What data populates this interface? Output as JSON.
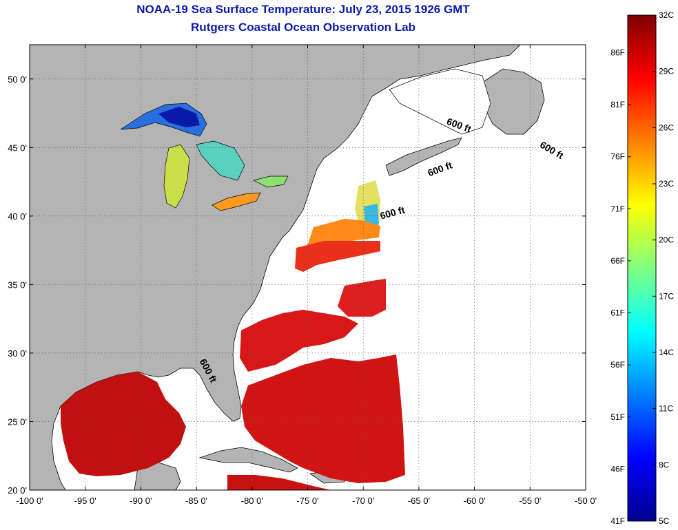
{
  "title": {
    "line1": "NOAA-19 Sea Surface Temperature:  July 23, 2015 1926 GMT",
    "line2": "Rutgers Coastal Ocean Observation Lab"
  },
  "map": {
    "projection": "equirectangular",
    "lon_range": [
      -100,
      -50
    ],
    "lat_range": [
      20,
      52.5
    ],
    "lon_ticks": [
      {
        "value": -100,
        "label": "-100 0'"
      },
      {
        "value": -95,
        "label": "-95 0'"
      },
      {
        "value": -90,
        "label": "-90 0'"
      },
      {
        "value": -85,
        "label": "-85 0'"
      },
      {
        "value": -80,
        "label": "-80 0'"
      },
      {
        "value": -75,
        "label": "-75 0'"
      },
      {
        "value": -70,
        "label": "-70 0'"
      },
      {
        "value": -65,
        "label": "-65 0'"
      },
      {
        "value": -60,
        "label": "-60 0'"
      },
      {
        "value": -55,
        "label": "-55 0'"
      },
      {
        "value": -50,
        "label": "-50 0'"
      }
    ],
    "lat_ticks": [
      {
        "value": 20,
        "label": "20 0'"
      },
      {
        "value": 25,
        "label": "25 0'"
      },
      {
        "value": 30,
        "label": "30 0'"
      },
      {
        "value": 35,
        "label": "35 0'"
      },
      {
        "value": 40,
        "label": "40 0'"
      },
      {
        "value": 45,
        "label": "45 0'"
      },
      {
        "value": 50,
        "label": "50 0'"
      }
    ],
    "grid": "dotted",
    "colors": {
      "land": "#b4b4b4",
      "no_data": "#ffffff",
      "coastline": "#000000"
    },
    "contour_labels": [
      {
        "text": "600 ft",
        "lon": -61.5,
        "lat": 46.4,
        "rotation": 20
      },
      {
        "text": "600 ft",
        "lon": -53.2,
        "lat": 44.6,
        "rotation": 30
      },
      {
        "text": "600 ft",
        "lon": -63.0,
        "lat": 43.2,
        "rotation": -20
      },
      {
        "text": "600 ft",
        "lon": -67.3,
        "lat": 40.0,
        "rotation": -15
      },
      {
        "text": "600 ft",
        "lon": -84.2,
        "lat": 28.6,
        "rotation": 62
      }
    ]
  },
  "colorbar": {
    "min_c": 5,
    "max_c": 32,
    "c_ticks": [
      {
        "value": 32,
        "label": "32C"
      },
      {
        "value": 29,
        "label": "29C"
      },
      {
        "value": 26,
        "label": "26C"
      },
      {
        "value": 23,
        "label": "23C"
      },
      {
        "value": 20,
        "label": "20C"
      },
      {
        "value": 17,
        "label": "17C"
      },
      {
        "value": 14,
        "label": "14C"
      },
      {
        "value": 11,
        "label": "11C"
      },
      {
        "value": 8,
        "label": "8C"
      },
      {
        "value": 5,
        "label": "5C"
      }
    ],
    "f_ticks": [
      {
        "value": 86,
        "label": "86F"
      },
      {
        "value": 81,
        "label": "81F"
      },
      {
        "value": 76,
        "label": "76F"
      },
      {
        "value": 71,
        "label": "71F"
      },
      {
        "value": 66,
        "label": "66F"
      },
      {
        "value": 61,
        "label": "61F"
      },
      {
        "value": 56,
        "label": "56F"
      },
      {
        "value": 51,
        "label": "51F"
      },
      {
        "value": 46,
        "label": "46F"
      },
      {
        "value": 41,
        "label": "41F"
      }
    ],
    "stops": [
      "#00008f",
      "#0000ff",
      "#0080ff",
      "#00ffff",
      "#80ff80",
      "#ffff00",
      "#ff8000",
      "#ff0000",
      "#800000"
    ]
  }
}
